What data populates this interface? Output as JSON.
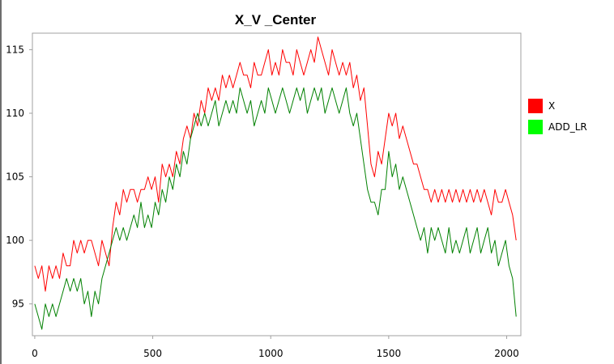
{
  "chart_data": {
    "type": "line",
    "title": "X_V _Center",
    "xlabel": "",
    "ylabel": "",
    "xlim": [
      -10,
      2060
    ],
    "ylim": [
      92.5,
      116.3
    ],
    "xticks": [
      0,
      500,
      1000,
      1500,
      2000
    ],
    "yticks": [
      95,
      100,
      105,
      110,
      115
    ],
    "grid": false,
    "legend_position": "right",
    "series": [
      {
        "name": "X",
        "color": "#ff0000",
        "x": [
          0,
          15,
          30,
          45,
          60,
          75,
          90,
          105,
          120,
          135,
          150,
          165,
          180,
          195,
          210,
          225,
          240,
          255,
          270,
          285,
          300,
          315,
          330,
          345,
          360,
          375,
          390,
          405,
          420,
          435,
          450,
          465,
          480,
          495,
          510,
          525,
          540,
          555,
          570,
          585,
          600,
          615,
          630,
          645,
          660,
          675,
          690,
          705,
          720,
          735,
          750,
          765,
          780,
          795,
          810,
          825,
          840,
          855,
          870,
          885,
          900,
          915,
          930,
          945,
          960,
          975,
          990,
          1005,
          1020,
          1035,
          1050,
          1065,
          1080,
          1095,
          1110,
          1125,
          1140,
          1155,
          1170,
          1185,
          1200,
          1215,
          1230,
          1245,
          1260,
          1275,
          1290,
          1305,
          1320,
          1335,
          1350,
          1365,
          1380,
          1395,
          1410,
          1425,
          1440,
          1455,
          1470,
          1485,
          1500,
          1515,
          1530,
          1545,
          1560,
          1575,
          1590,
          1605,
          1620,
          1635,
          1650,
          1665,
          1680,
          1695,
          1710,
          1725,
          1740,
          1755,
          1770,
          1785,
          1800,
          1815,
          1830,
          1845,
          1860,
          1875,
          1890,
          1905,
          1920,
          1935,
          1950,
          1965,
          1980,
          1995,
          2010,
          2025,
          2040
        ],
        "values": [
          98,
          97,
          98,
          96,
          98,
          97,
          98,
          97,
          99,
          98,
          98,
          100,
          99,
          100,
          99,
          100,
          100,
          99,
          98,
          100,
          99,
          98,
          101,
          103,
          102,
          104,
          103,
          104,
          104,
          103,
          104,
          104,
          105,
          104,
          105,
          103,
          106,
          105,
          106,
          105,
          107,
          106,
          108,
          109,
          108,
          110,
          109,
          111,
          110,
          112,
          111,
          112,
          111,
          113,
          112,
          113,
          112,
          113,
          114,
          113,
          113,
          112,
          114,
          113,
          113,
          114,
          115,
          113,
          114,
          113,
          115,
          114,
          114,
          113,
          115,
          114,
          113,
          114,
          115,
          114,
          116,
          115,
          114,
          113,
          115,
          114,
          113,
          114,
          113,
          114,
          112,
          113,
          111,
          112,
          109,
          106,
          105,
          107,
          106,
          108,
          110,
          109,
          110,
          108,
          109,
          108,
          107,
          106,
          106,
          105,
          104,
          104,
          103,
          104,
          103,
          104,
          103,
          104,
          103,
          104,
          103,
          104,
          103,
          104,
          103,
          104,
          103,
          104,
          103,
          102,
          104,
          103,
          103,
          104,
          103,
          102,
          100
        ]
      },
      {
        "name": "ADD_LR",
        "color": "#008000",
        "x": [
          0,
          15,
          30,
          45,
          60,
          75,
          90,
          105,
          120,
          135,
          150,
          165,
          180,
          195,
          210,
          225,
          240,
          255,
          270,
          285,
          300,
          315,
          330,
          345,
          360,
          375,
          390,
          405,
          420,
          435,
          450,
          465,
          480,
          495,
          510,
          525,
          540,
          555,
          570,
          585,
          600,
          615,
          630,
          645,
          660,
          675,
          690,
          705,
          720,
          735,
          750,
          765,
          780,
          795,
          810,
          825,
          840,
          855,
          870,
          885,
          900,
          915,
          930,
          945,
          960,
          975,
          990,
          1005,
          1020,
          1035,
          1050,
          1065,
          1080,
          1095,
          1110,
          1125,
          1140,
          1155,
          1170,
          1185,
          1200,
          1215,
          1230,
          1245,
          1260,
          1275,
          1290,
          1305,
          1320,
          1335,
          1350,
          1365,
          1380,
          1395,
          1410,
          1425,
          1440,
          1455,
          1470,
          1485,
          1500,
          1515,
          1530,
          1545,
          1560,
          1575,
          1590,
          1605,
          1620,
          1635,
          1650,
          1665,
          1680,
          1695,
          1710,
          1725,
          1740,
          1755,
          1770,
          1785,
          1800,
          1815,
          1830,
          1845,
          1860,
          1875,
          1890,
          1905,
          1920,
          1935,
          1950,
          1965,
          1980,
          1995,
          2010,
          2025,
          2040
        ],
        "values": [
          95,
          94,
          93,
          95,
          94,
          95,
          94,
          95,
          96,
          97,
          96,
          97,
          96,
          97,
          95,
          96,
          94,
          96,
          95,
          97,
          98,
          99,
          100,
          101,
          100,
          101,
          100,
          101,
          102,
          101,
          103,
          101,
          102,
          101,
          103,
          102,
          104,
          103,
          105,
          104,
          106,
          105,
          107,
          106,
          108,
          109,
          110,
          109,
          110,
          109,
          110,
          111,
          109,
          110,
          111,
          110,
          111,
          110,
          112,
          111,
          110,
          111,
          109,
          110,
          111,
          110,
          112,
          111,
          110,
          111,
          112,
          111,
          110,
          111,
          112,
          111,
          112,
          110,
          111,
          112,
          111,
          112,
          110,
          111,
          112,
          111,
          110,
          111,
          112,
          110,
          109,
          110,
          108,
          106,
          104,
          103,
          103,
          102,
          104,
          104,
          107,
          105,
          106,
          104,
          105,
          104,
          103,
          102,
          101,
          100,
          101,
          99,
          101,
          100,
          101,
          100,
          99,
          101,
          99,
          100,
          99,
          100,
          101,
          99,
          100,
          101,
          99,
          100,
          101,
          99,
          100,
          98,
          99,
          100,
          98,
          97,
          94
        ]
      }
    ]
  }
}
